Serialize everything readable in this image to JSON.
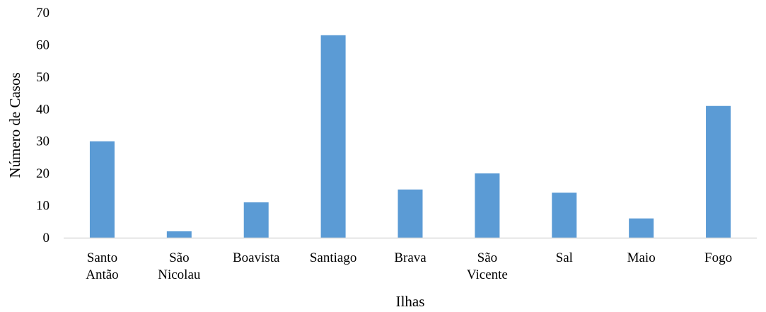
{
  "chart_data": {
    "type": "bar",
    "title": "",
    "xlabel": "Ilhas",
    "ylabel": "Número de Casos",
    "ylim": [
      0,
      70
    ],
    "yticks": [
      0,
      10,
      20,
      30,
      40,
      50,
      60,
      70
    ],
    "grid": false,
    "legend": "none",
    "bar_color": "#5b9bd5",
    "categories": [
      [
        "Santo",
        "Antão"
      ],
      [
        "São",
        "Nicolau"
      ],
      [
        "Boavista"
      ],
      [
        "Santiago"
      ],
      [
        "Brava"
      ],
      [
        "São",
        "Vicente"
      ],
      [
        "Sal"
      ],
      [
        "Maio"
      ],
      [
        "Fogo"
      ]
    ],
    "values": [
      30,
      2,
      11,
      63,
      15,
      20,
      14,
      6,
      41
    ]
  }
}
